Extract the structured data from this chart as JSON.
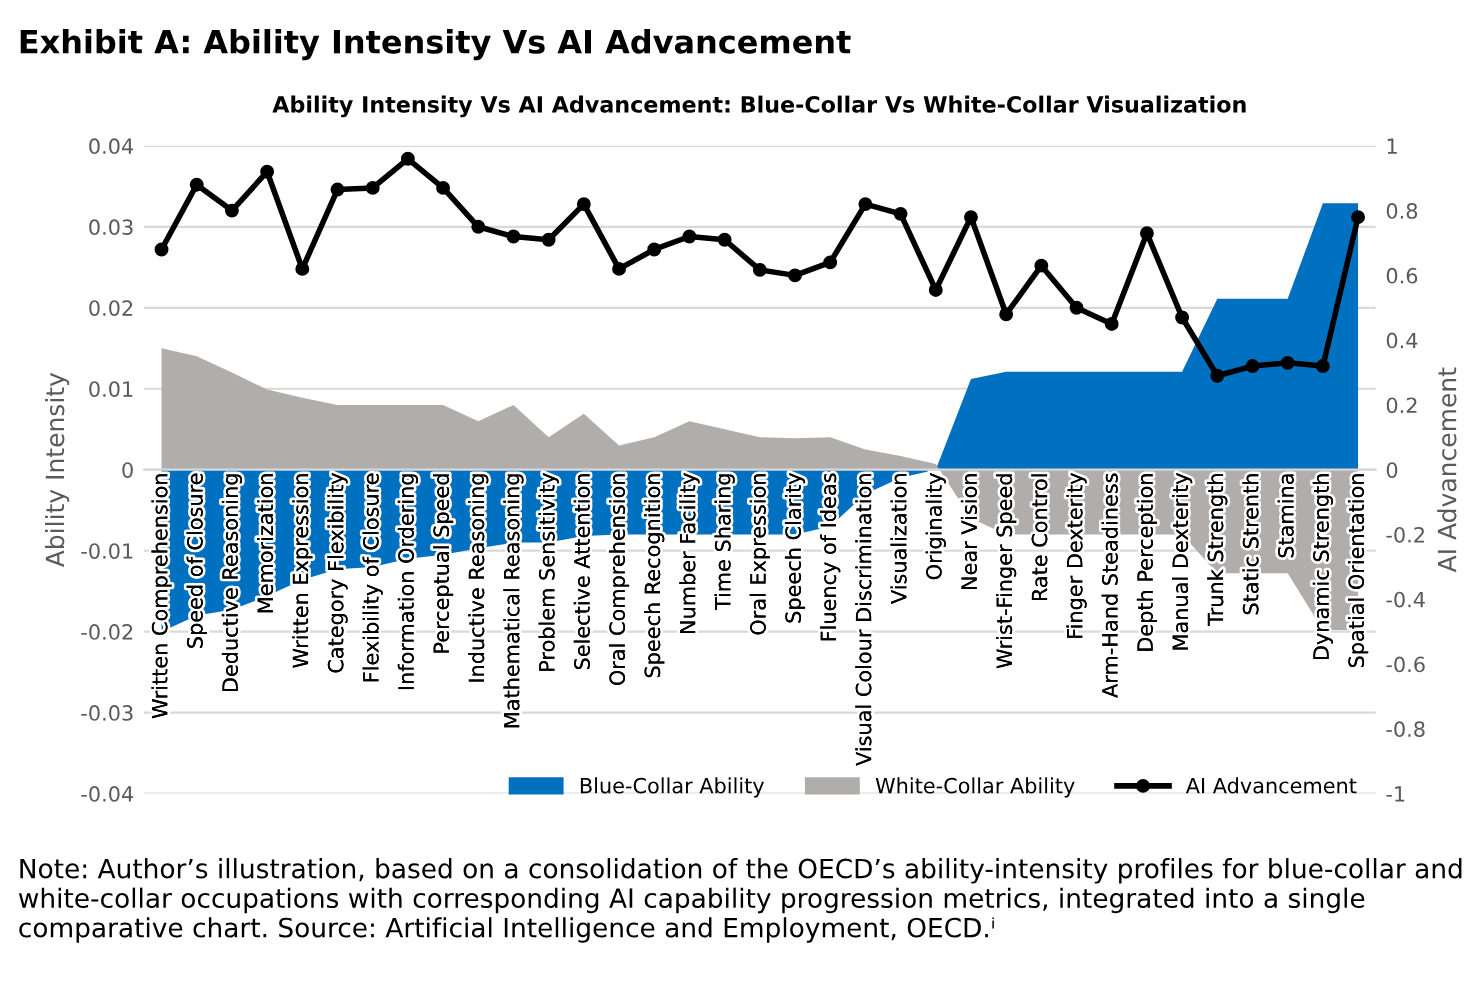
{
  "chart_data": {
    "type": "area",
    "title": "Exhibit A: Ability Intensity Vs AI Advancement",
    "subtitle": "Ability Intensity Vs AI Advancement: Blue-Collar Vs White-Collar Visualization",
    "ylabel": "Ability Intensity",
    "y2label": "AI Advancement",
    "categories": [
      "Written Comprehension",
      "Speed of Closure",
      "Deductive Reasoning",
      "Memorization",
      "Written Expression",
      "Category Flexibility",
      "Flexibility of Closure",
      "Information Ordering",
      "Perceptual Speed",
      "Inductive Reasoning",
      "Mathematical Reasoning",
      "Problem Sensitivity",
      "Selective Attention",
      "Oral Comprehension",
      "Speech Recognition",
      "Number Facility",
      "Time Sharing",
      "Oral Expression",
      "Speech Clarity",
      "Fluency of Ideas",
      "Visual Colour Discrimination",
      "Visualization",
      "Originality",
      "Near Vision",
      "Wrist-Finger Speed",
      "Rate Control",
      "Finger Dexterity",
      "Arm-Hand Steadiness",
      "Depth Perception",
      "Manual Dexterity",
      "Trunk Strength",
      "Static Strenth",
      "Stamina",
      "Dynamic Strength",
      "Spatial Orientation"
    ],
    "series": [
      {
        "name": "Blue-Collar Ability",
        "color": "#0070c0",
        "values": [
          -0.02,
          -0.018,
          -0.0173,
          -0.0156,
          -0.0136,
          -0.0123,
          -0.012,
          -0.011,
          -0.0105,
          -0.0097,
          -0.009,
          -0.009,
          -0.0082,
          -0.008,
          -0.008,
          -0.008,
          -0.008,
          -0.008,
          -0.008,
          -0.007,
          -0.003,
          -0.001,
          0,
          0.0112,
          0.0121,
          0.0121,
          0.0121,
          0.0121,
          0.0121,
          0.0121,
          0.0211,
          0.0211,
          0.0211,
          0.0329,
          0.0329
        ]
      },
      {
        "name": "White-Collar Ability",
        "color": "#b0adab",
        "values": [
          0.015,
          0.014,
          0.012,
          0.0099,
          0.0089,
          0.008,
          0.008,
          0.008,
          0.008,
          0.006,
          0.008,
          0.004,
          0.0069,
          0.003,
          0.004,
          0.006,
          0.005,
          0.004,
          0.0039,
          0.004,
          0.0025,
          0.0017,
          0.0007,
          -0.006,
          -0.008,
          -0.008,
          -0.008,
          -0.008,
          -0.008,
          -0.008,
          -0.0128,
          -0.0128,
          -0.0128,
          -0.0198,
          -0.0198
        ]
      },
      {
        "name": "AI Advancement",
        "type": "line",
        "axis": "y2",
        "color": "#000000",
        "marker": "circle",
        "values": [
          0.68,
          0.88,
          0.8,
          0.92,
          0.62,
          0.865,
          0.87,
          0.96,
          0.87,
          0.75,
          0.72,
          0.71,
          0.82,
          0.62,
          0.68,
          0.72,
          0.71,
          0.617,
          0.6,
          0.64,
          0.82,
          0.79,
          0.555,
          0.78,
          0.48,
          0.63,
          0.5,
          0.45,
          0.73,
          0.47,
          0.29,
          0.32,
          0.33,
          0.32,
          0.78
        ]
      }
    ],
    "ylim": [
      -0.04,
      0.04
    ],
    "yticks": [
      -0.04,
      -0.03,
      -0.02,
      -0.01,
      0,
      0.01,
      0.02,
      0.03,
      0.04
    ],
    "y2lim": [
      -1,
      1
    ],
    "y2ticks": [
      -1,
      -0.8,
      -0.6,
      -0.4,
      -0.2,
      0,
      0.2,
      0.4,
      0.6,
      0.8,
      1
    ],
    "grid": "y",
    "legend": "bottom right",
    "annotations": [
      "Note: Author’s illustration, based on a consolidation of the OECD’s ability-intensity profiles for blue-collar and white-collar occupations with corresponding AI capability progression metrics, integrated into a single comparative chart. Source: Artificial Intelligence and Employment, OECD.ⁱ"
    ]
  }
}
